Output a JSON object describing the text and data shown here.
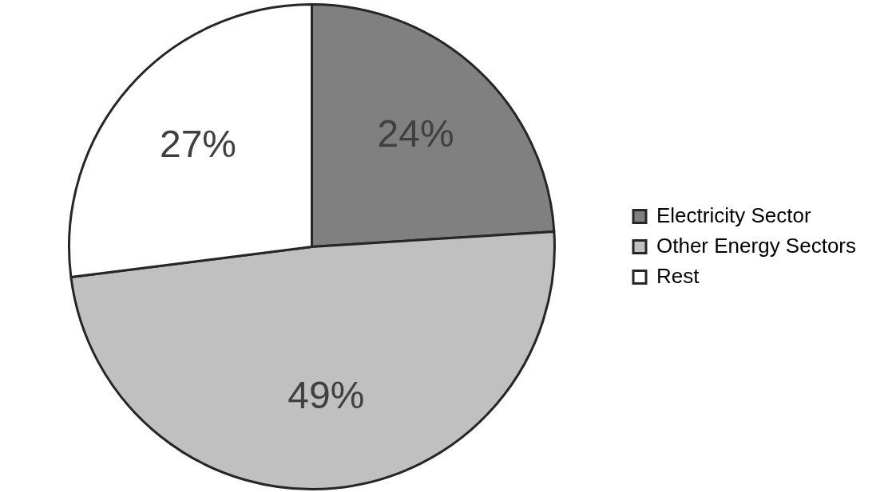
{
  "chart_data": {
    "type": "pie",
    "categories": [
      "Electricity Sector",
      "Other Energy Sectors",
      "Rest"
    ],
    "values": [
      24,
      49,
      27
    ],
    "colors": [
      "#808080",
      "#c0c0c0",
      "#ffffff"
    ],
    "value_labels": [
      "24%",
      "49%",
      "27%"
    ],
    "legend": "right"
  }
}
